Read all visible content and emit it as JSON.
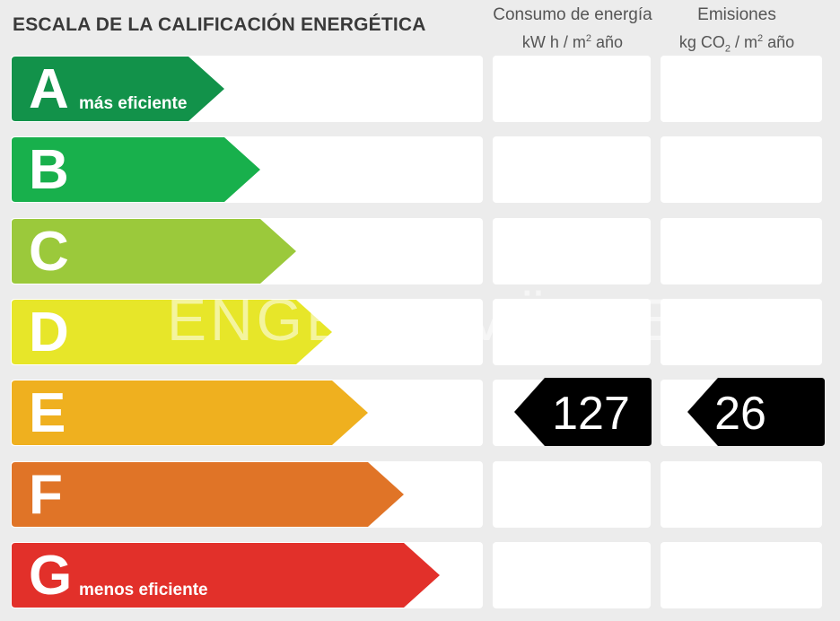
{
  "title": "ESCALA DE LA CALIFICACIÓN ENERGÉTICA",
  "columns": {
    "consumo": {
      "line1": "Consumo de energía",
      "line2_pre": "kW h  / m",
      "line2_sup": "2",
      "line2_post": " año"
    },
    "emisiones": {
      "line1": "Emisiones",
      "line2_pre": "kg CO",
      "line2_sub": "2",
      "line2_mid": "  / m",
      "line2_sup": "2",
      "line2_post": " año"
    }
  },
  "ratings": [
    {
      "letter": "A",
      "tag": "más eficiente",
      "color": "#12924a"
    },
    {
      "letter": "B",
      "tag": "",
      "color": "#18b04c"
    },
    {
      "letter": "C",
      "tag": "",
      "color": "#9bc93b"
    },
    {
      "letter": "D",
      "tag": "",
      "color": "#e7e629"
    },
    {
      "letter": "E",
      "tag": "",
      "color": "#efb01f"
    },
    {
      "letter": "F",
      "tag": "",
      "color": "#e07427"
    },
    {
      "letter": "G",
      "tag": "menos eficiente",
      "color": "#e2302a"
    }
  ],
  "result": {
    "rating": "E",
    "consumo": "127",
    "emisiones": "26"
  },
  "watermark": "ENGEL & VÖLKERS"
}
